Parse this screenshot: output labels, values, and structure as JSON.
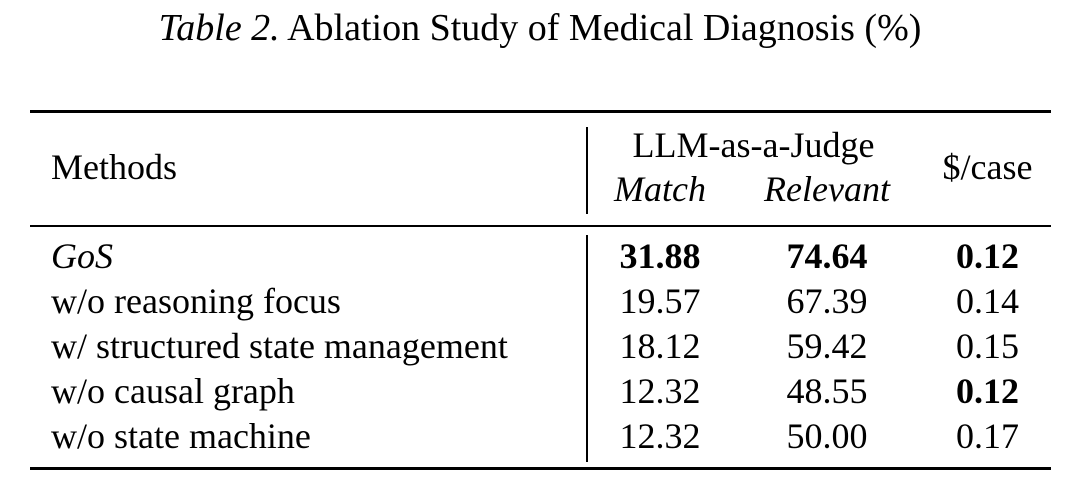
{
  "caption": {
    "label": "Table 2.",
    "text": "Ablation Study of Medical Diagnosis (%)"
  },
  "table": {
    "headers": {
      "methods": "Methods",
      "group": "LLM-as-a-Judge",
      "match": "Match",
      "relevant": "Relevant",
      "cost": "$/case"
    },
    "rows": [
      {
        "method": "GoS",
        "match": "31.88",
        "relevant": "74.64",
        "cost": "0.12"
      },
      {
        "method": "w/o reasoning focus",
        "match": "19.57",
        "relevant": "67.39",
        "cost": "0.14"
      },
      {
        "method": "w/ structured state management",
        "match": "18.12",
        "relevant": "59.42",
        "cost": "0.15"
      },
      {
        "method": "w/o causal graph",
        "match": "12.32",
        "relevant": "48.55",
        "cost": "0.12"
      },
      {
        "method": "w/o state machine",
        "match": "12.32",
        "relevant": "50.00",
        "cost": "0.17"
      }
    ]
  }
}
